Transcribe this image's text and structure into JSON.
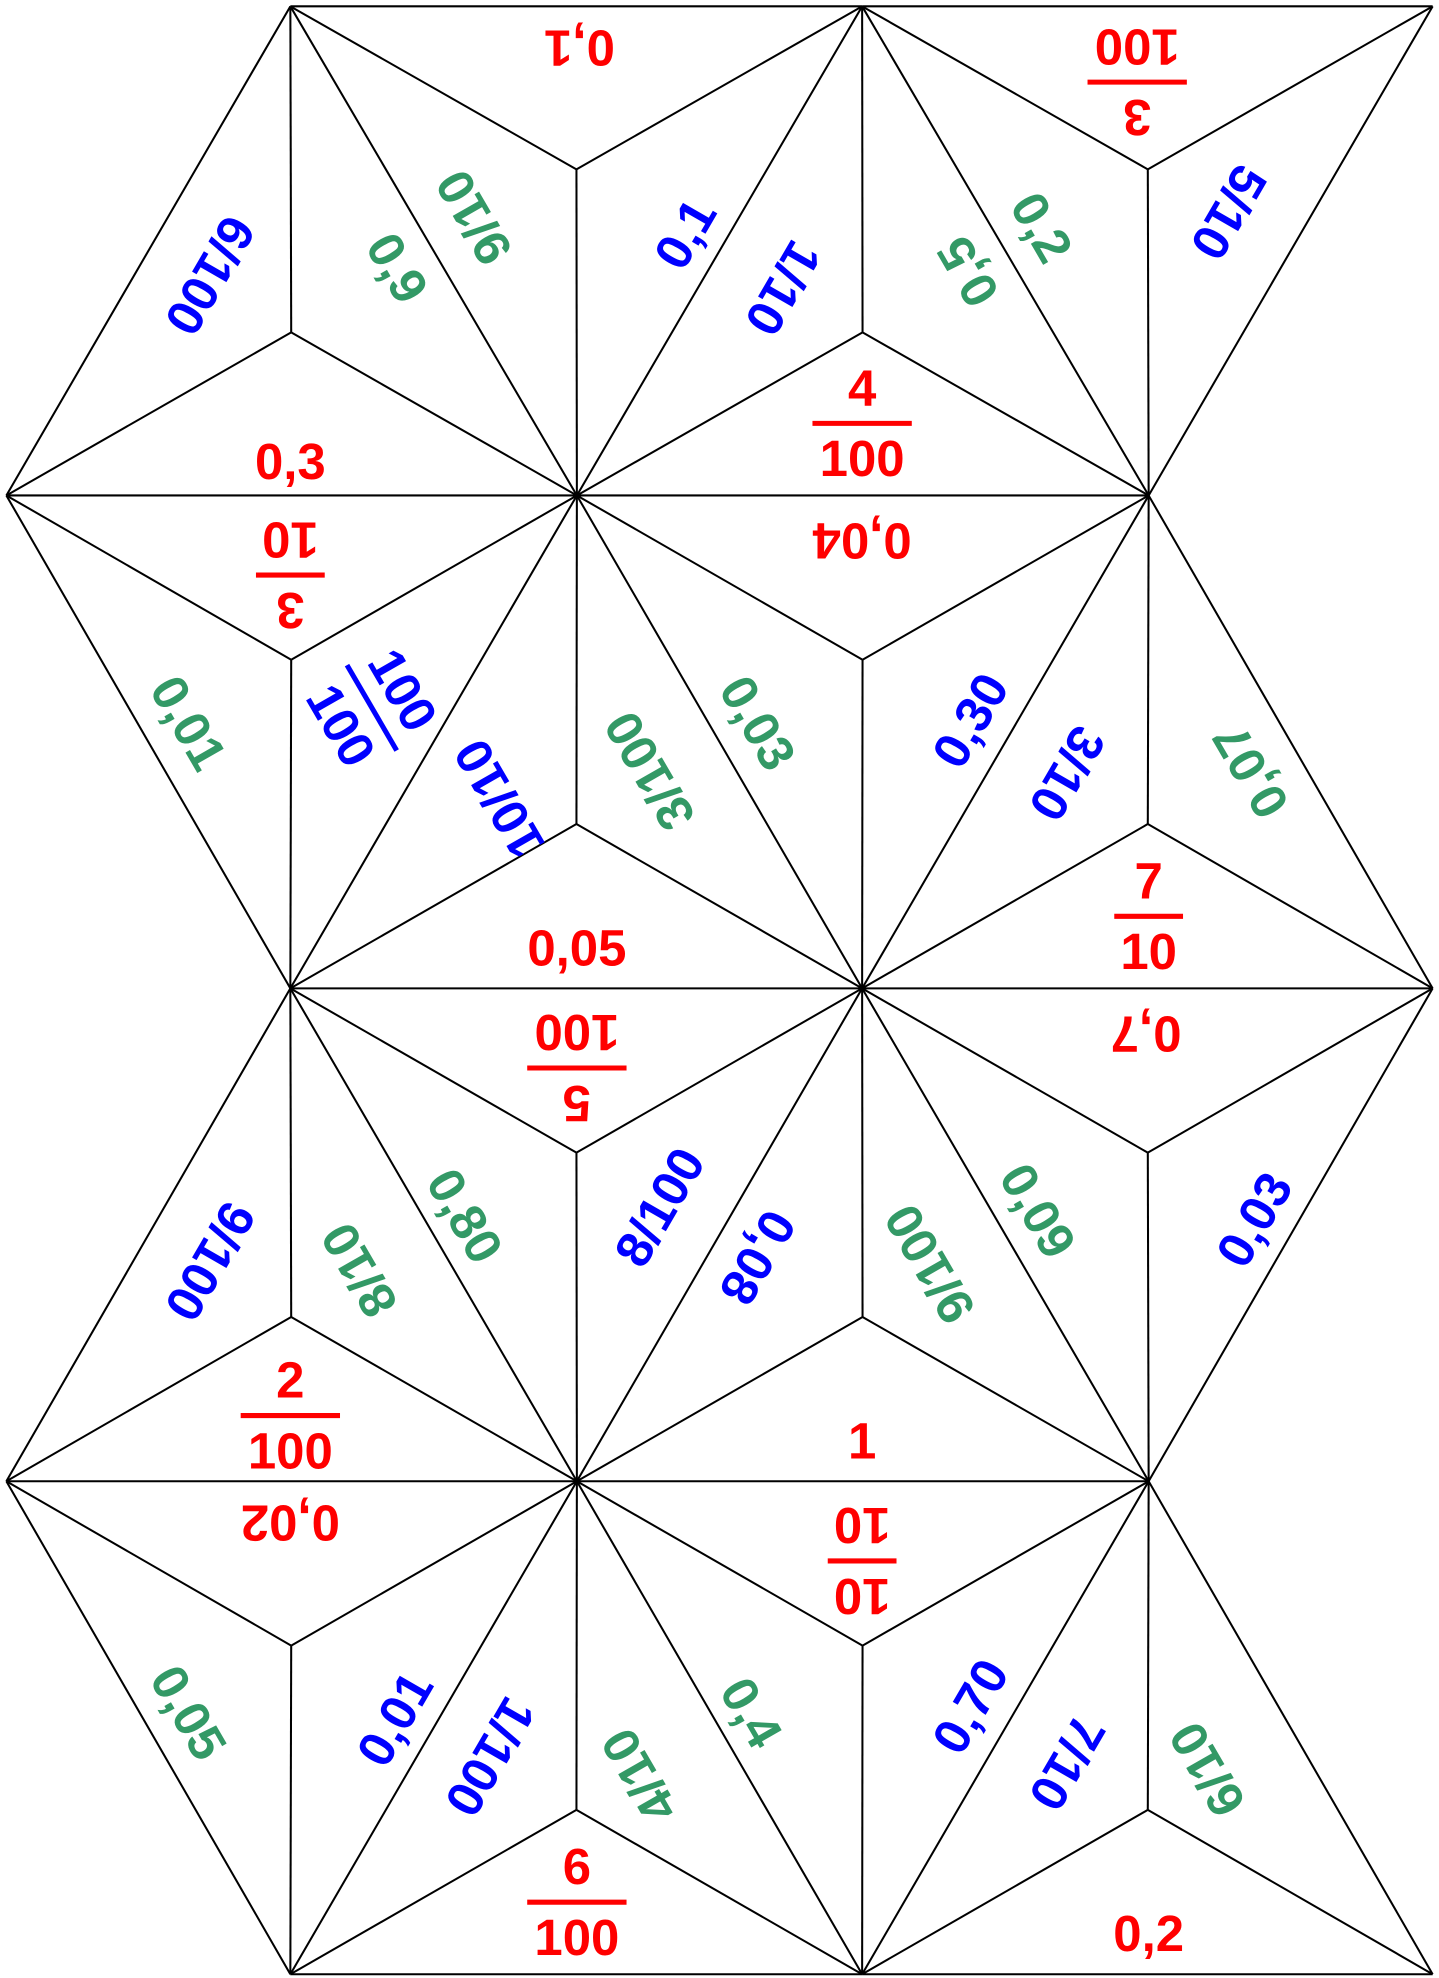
{
  "labels": [
    {
      "text": "0,1",
      "color": "#ff0000"
    },
    {
      "numerator": "3",
      "denominator": "100",
      "color": "#ff0000"
    },
    {
      "text": "6/100",
      "color": "#0000ff"
    },
    {
      "text": "9/10",
      "color": "#339966"
    },
    {
      "text": "0,9",
      "color": "#339966"
    },
    {
      "text": "0,1",
      "color": "#0000ff"
    },
    {
      "text": "1/10",
      "color": "#0000ff"
    },
    {
      "text": "0,5",
      "color": "#339966"
    },
    {
      "text": "0,2",
      "color": "#339966"
    },
    {
      "text": "5/10",
      "color": "#0000ff"
    },
    {
      "text": "0,3",
      "color": "#ff0000"
    },
    {
      "numerator": "4",
      "denominator": "100",
      "color": "#ff0000"
    },
    {
      "numerator": "3",
      "denominator": "10",
      "color": "#ff0000"
    },
    {
      "text": "0,04",
      "color": "#ff0000"
    },
    {
      "text": "0,01",
      "color": "#339966"
    },
    {
      "numerator": "100",
      "denominator": "100",
      "color": "#0000ff"
    },
    {
      "text": "10/10",
      "color": "#0000ff"
    },
    {
      "text": "3/100",
      "color": "#339966"
    },
    {
      "text": "0,03",
      "color": "#339966"
    },
    {
      "text": "0,30",
      "color": "#0000ff"
    },
    {
      "text": "3/10",
      "color": "#0000ff"
    },
    {
      "text": "0,07",
      "color": "#339966"
    },
    {
      "numerator": "7",
      "denominator": "10",
      "color": "#ff0000"
    },
    {
      "text": "0,05",
      "color": "#ff0000"
    },
    {
      "numerator": "5",
      "denominator": "100",
      "color": "#ff0000"
    },
    {
      "text": "0,7",
      "color": "#ff0000"
    },
    {
      "text": "9/100",
      "color": "#0000ff"
    },
    {
      "text": "8/10",
      "color": "#339966"
    },
    {
      "text": "0,80",
      "color": "#339966"
    },
    {
      "text": "8/100",
      "color": "#0000ff"
    },
    {
      "text": "0,08",
      "color": "#0000ff"
    },
    {
      "text": "9/100",
      "color": "#339966"
    },
    {
      "text": "0,09",
      "color": "#339966"
    },
    {
      "text": "0,03",
      "color": "#0000ff"
    },
    {
      "numerator": "2",
      "denominator": "100",
      "color": "#ff0000"
    },
    {
      "text": "1",
      "color": "#ff0000"
    },
    {
      "text": "0,02",
      "color": "#ff0000"
    },
    {
      "numerator": "10",
      "denominator": "10",
      "color": "#ff0000"
    },
    {
      "text": "0,05",
      "color": "#339966"
    },
    {
      "text": "0,01",
      "color": "#0000ff"
    },
    {
      "text": "1/100",
      "color": "#0000ff"
    },
    {
      "text": "4/10",
      "color": "#339966"
    },
    {
      "text": "0,4",
      "color": "#339966"
    },
    {
      "text": "0,70",
      "color": "#0000ff"
    },
    {
      "text": "7/10",
      "color": "#0000ff"
    },
    {
      "text": "6/10",
      "color": "#339966"
    },
    {
      "numerator": "6",
      "denominator": "100",
      "color": "#ff0000"
    },
    {
      "text": "0,2",
      "color": "#ff0000"
    }
  ]
}
